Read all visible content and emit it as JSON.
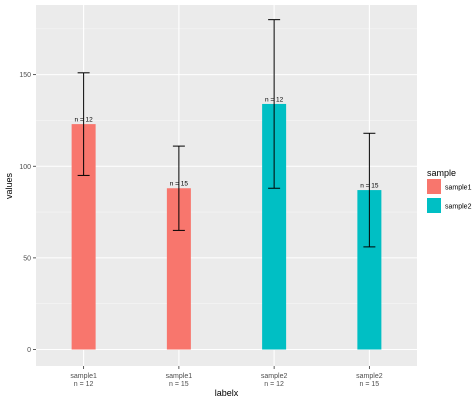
{
  "chart_data": {
    "type": "bar",
    "categories": [
      "sample1\nn = 12",
      "sample1\nn = 15",
      "sample2\nn = 12",
      "sample2\nn = 15"
    ],
    "bars": [
      {
        "value": 123,
        "err_low": 95,
        "err_high": 151,
        "group": "sample1",
        "label": "n = 12"
      },
      {
        "value": 88,
        "err_low": 65,
        "err_high": 111,
        "group": "sample1",
        "label": "n = 15"
      },
      {
        "value": 134,
        "err_low": 88,
        "err_high": 180,
        "group": "sample2",
        "label": "n = 12"
      },
      {
        "value": 87,
        "err_low": 56,
        "err_high": 118,
        "group": "sample2",
        "label": "n = 15"
      }
    ],
    "xlabel": "labelx",
    "ylabel": "values",
    "ylim": [
      -9,
      188
    ],
    "yticks": [
      0,
      50,
      100,
      150
    ],
    "grid": true,
    "legend": {
      "title": "sample",
      "placement": "right",
      "entries": [
        {
          "name": "sample1",
          "color": "#F8766D"
        },
        {
          "name": "sample2",
          "color": "#00BFC4"
        }
      ]
    },
    "colors": {
      "sample1": "#F8766D",
      "sample2": "#00BFC4",
      "panel": "#EBEBEB",
      "grid": "#FFFFFF"
    }
  }
}
